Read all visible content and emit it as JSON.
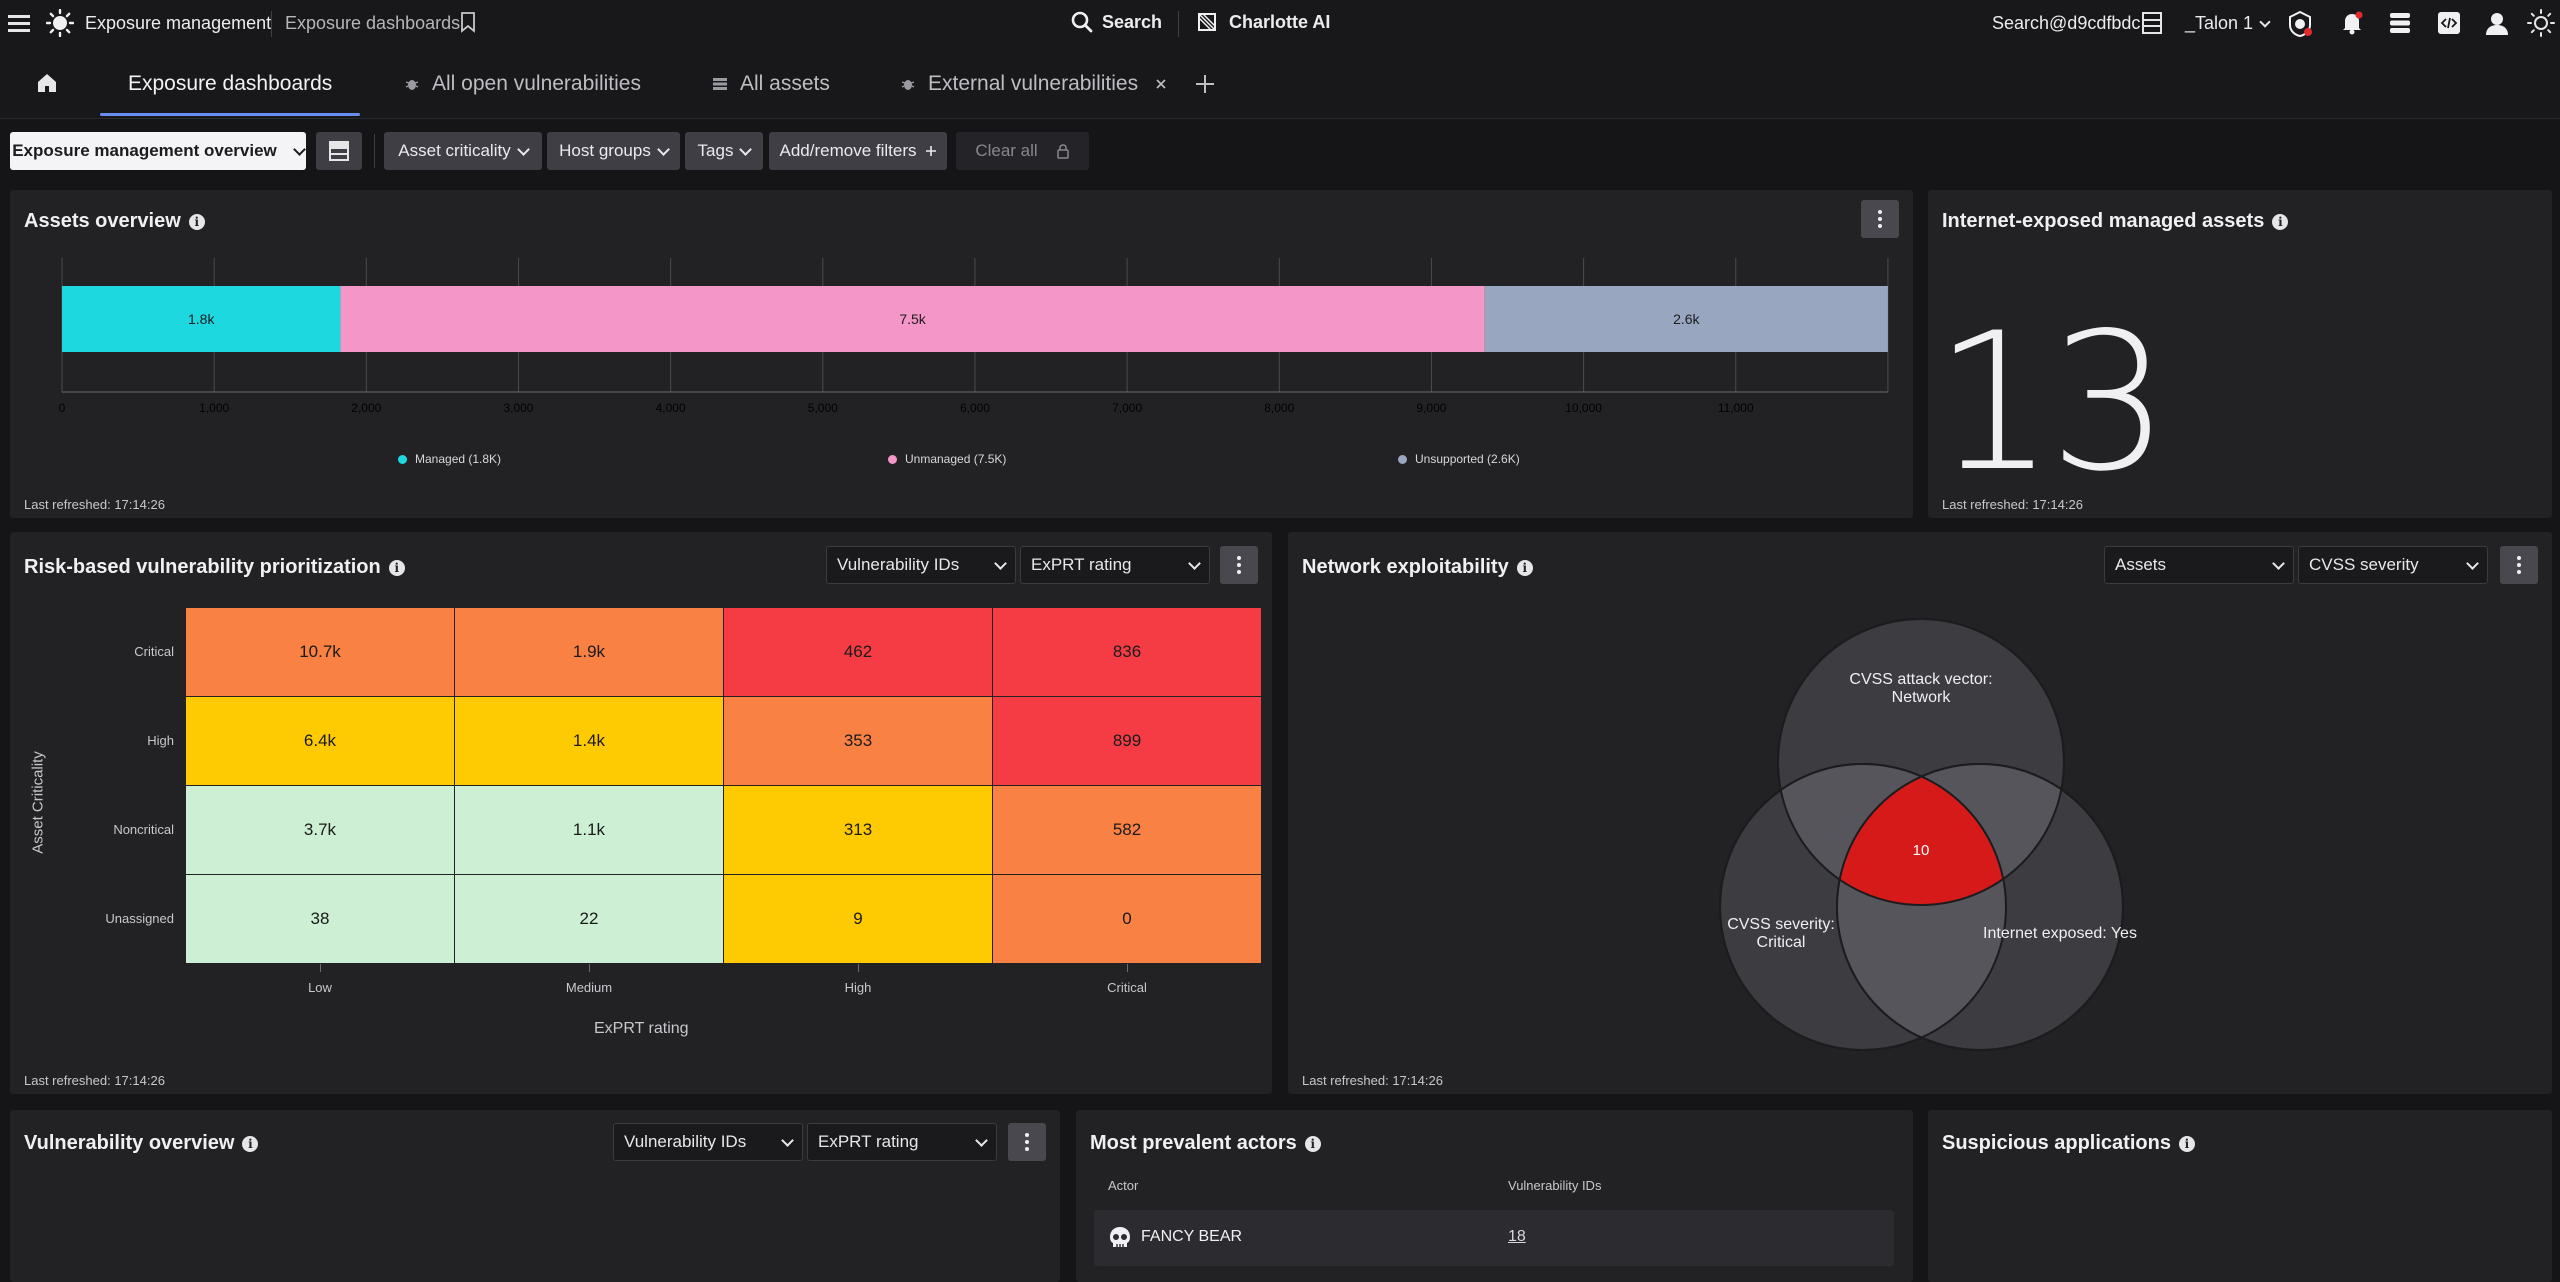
{
  "topbar": {
    "app_title": "Exposure management",
    "breadcrumb": "Exposure dashboards",
    "search_label": "Search",
    "charlotte_label": "Charlotte AI",
    "user": "Search@d9cdfbdc",
    "cid": "_Talon 1"
  },
  "tabs": [
    {
      "label": "Exposure dashboards"
    },
    {
      "label": "All open vulnerabilities"
    },
    {
      "label": "All assets"
    },
    {
      "label": "External vulnerabilities"
    }
  ],
  "filters": {
    "view_select": "Exposure management overview",
    "asset_criticality": "Asset criticality",
    "host_groups": "Host groups",
    "tags": "Tags",
    "add_remove": "Add/remove filters",
    "clear_all": "Clear all"
  },
  "assets_overview": {
    "title": "Assets overview",
    "refreshed": "Last refreshed: 17:14:26",
    "chart_data": {
      "type": "bar",
      "orientation": "horizontal-stacked",
      "series": [
        {
          "name": "Managed (1.8K)",
          "value": 1830,
          "label": "1.8k",
          "color": "#1ed8e0"
        },
        {
          "name": "Unmanaged (7.5K)",
          "value": 7520,
          "label": "7.5k",
          "color": "#f596c9"
        },
        {
          "name": "Unsupported (2.6K)",
          "value": 2650,
          "label": "2.6k",
          "color": "#98a6c0"
        }
      ],
      "xlim": [
        0,
        12000
      ],
      "ticks": [
        0,
        1000,
        2000,
        3000,
        4000,
        5000,
        6000,
        7000,
        8000,
        9000,
        10000,
        11000
      ],
      "tick_labels": [
        "0",
        "1,000",
        "2,000",
        "3,000",
        "4,000",
        "5,000",
        "6,000",
        "7,000",
        "8,000",
        "9,000",
        "10,000",
        "11,000"
      ],
      "legend_placement": "bottom"
    }
  },
  "internet_exposed": {
    "title": "Internet-exposed managed assets",
    "value": "13",
    "refreshed": "Last refreshed: 17:14:26"
  },
  "risk_matrix": {
    "title": "Risk-based vulnerability prioritization",
    "select1": "Vulnerability IDs",
    "select2": "ExPRT rating",
    "refreshed": "Last refreshed: 17:14:26",
    "chart_data": {
      "type": "heatmap",
      "ylabel": "Asset Criticality",
      "xlabel": "ExPRT rating",
      "rows": [
        "Critical",
        "High",
        "Noncritical",
        "Unassigned"
      ],
      "cols": [
        "Low",
        "Medium",
        "High",
        "Critical"
      ],
      "labels": [
        [
          "10.7k",
          "1.9k",
          "462",
          "836"
        ],
        [
          "6.4k",
          "1.4k",
          "353",
          "899"
        ],
        [
          "3.7k",
          "1.1k",
          "313",
          "582"
        ],
        [
          "38",
          "22",
          "9",
          "0"
        ]
      ],
      "colors": [
        [
          "#f98143",
          "#f98143",
          "#f53c45",
          "#f53c45"
        ],
        [
          "#fecb03",
          "#fecb03",
          "#f98143",
          "#f53c45"
        ],
        [
          "#cdf0d4",
          "#cdf0d4",
          "#fecb03",
          "#f98143"
        ],
        [
          "#cdf0d4",
          "#cdf0d4",
          "#fecb03",
          "#f98143"
        ]
      ]
    }
  },
  "network": {
    "title": "Network exploitability",
    "select1": "Assets",
    "select2": "CVSS severity",
    "refreshed": "Last refreshed: 17:14:26",
    "venn": {
      "set_top": "CVSS attack vector:\nNetwork",
      "set_left": "CVSS severity:\nCritical",
      "set_right": "Internet exposed: Yes",
      "intersection": "10",
      "intersection_color": "#d61a1a"
    }
  },
  "vuln_overview": {
    "title": "Vulnerability overview",
    "select1": "Vulnerability IDs",
    "select2": "ExPRT rating"
  },
  "actors": {
    "title": "Most prevalent actors",
    "col_actor": "Actor",
    "col_ids": "Vulnerability IDs",
    "rows": [
      {
        "name": "FANCY BEAR",
        "count": "18"
      }
    ]
  },
  "suspicious": {
    "title": "Suspicious applications"
  }
}
